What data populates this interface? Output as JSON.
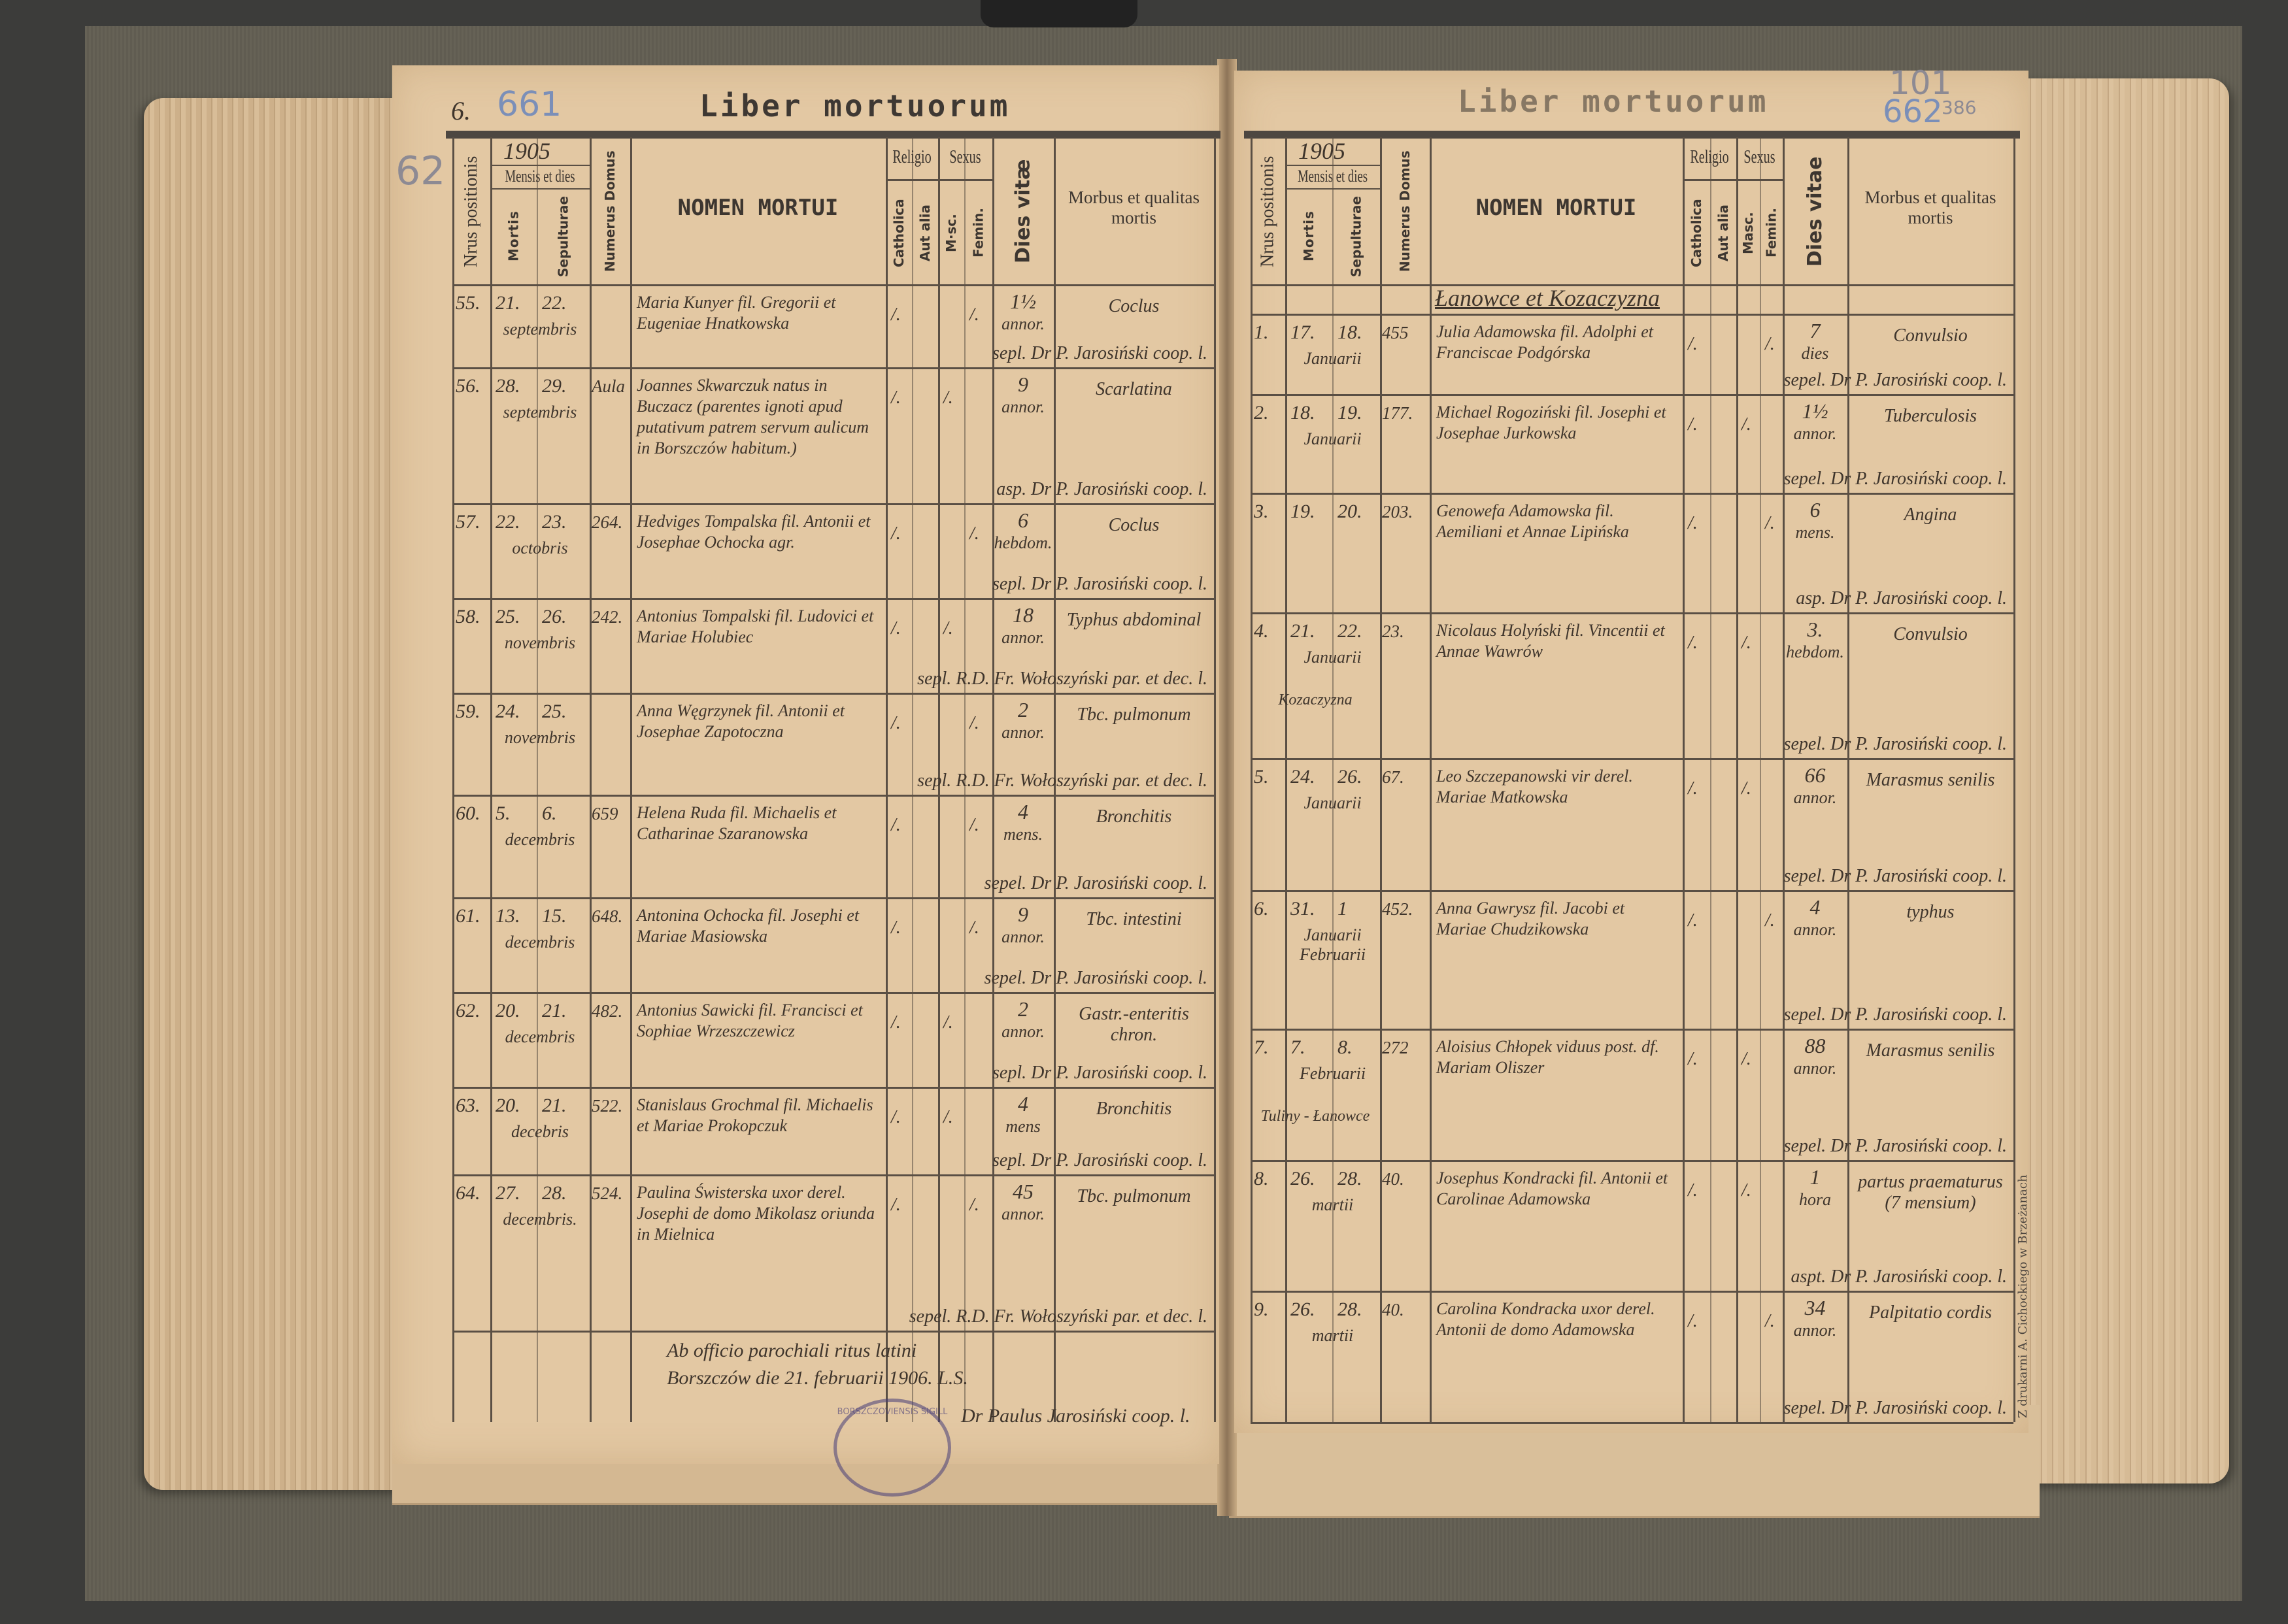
{
  "pencil_marks": {
    "left_margin": "62",
    "left_page_folio": "6.",
    "left_page_number": "661",
    "right_page_number": "662",
    "right_page_small": "386",
    "right_top": "101"
  },
  "left_page": {
    "title": "Liber mortuorum",
    "header": {
      "nrus": "Nrus positionis",
      "year": "1905",
      "mensis": "Mensis et dies",
      "mortis": "Mortis",
      "sepulturae": "Sepulturae",
      "domus": "Numerus Domus",
      "nomen": "NOMEN MORTUI",
      "religio": "Religio",
      "catholica": "Catholica",
      "aut_alia": "Aut alia",
      "sexus": "Sexus",
      "masc": "M·sc.",
      "femin": "Femin.",
      "dies_vitae": "Dies vitæ",
      "morbus": "Morbus et qualitas mortis"
    },
    "entries": [
      {
        "nr": "55.",
        "mortis": "21.",
        "sepulturae": "22.",
        "month": "septembris",
        "domus": "",
        "name": "Maria Kunyer fil. Gregorii et Eugeniae Hnatkowska",
        "catholica": "/.",
        "masc": "",
        "femin": "/.",
        "age": "1½",
        "age_unit": "annor.",
        "morbus": "Coclus",
        "sepultus": "sepl. Dr P. Jarosiński coop. l."
      },
      {
        "nr": "56.",
        "mortis": "28.",
        "sepulturae": "29.",
        "month": "septembris",
        "domus": "Aula",
        "name": "Joannes Skwarczuk natus in Buczacz (parentes ignoti apud putativum patrem servum aulicum in Borszczów habitum.)",
        "catholica": "/.",
        "masc": "/.",
        "femin": "",
        "age": "9",
        "age_unit": "annor.",
        "morbus": "Scarlatina",
        "sepultus": "asp. Dr P. Jarosiński coop. l."
      },
      {
        "nr": "57.",
        "mortis": "22.",
        "sepulturae": "23.",
        "month": "octobris",
        "domus": "264.",
        "name": "Hedviges Tompalska fil. Antonii et Josephae Ochocka agr.",
        "catholica": "/.",
        "masc": "",
        "femin": "/.",
        "age": "6",
        "age_unit": "hebdom.",
        "morbus": "Coclus",
        "sepultus": "sepl. Dr P. Jarosiński coop. l."
      },
      {
        "nr": "58.",
        "mortis": "25.",
        "sepulturae": "26.",
        "month": "novembris",
        "domus": "242.",
        "name": "Antonius Tompalski fil. Ludovici et Mariae Holubiec",
        "catholica": "/.",
        "masc": "/.",
        "femin": "",
        "age": "18",
        "age_unit": "annor.",
        "morbus": "Typhus abdominal",
        "sepultus": "sepl. R.D. Fr. Wołoszyński par. et dec. l."
      },
      {
        "nr": "59.",
        "mortis": "24.",
        "sepulturae": "25.",
        "month": "novembris",
        "domus": "",
        "name": "Anna Węgrzynek fil. Antonii et Josephae Zapotoczna",
        "catholica": "/.",
        "masc": "",
        "femin": "/.",
        "age": "2",
        "age_unit": "annor.",
        "morbus": "Tbc. pulmonum",
        "sepultus": "sepl. R.D. Fr. Wołoszyński par. et dec. l."
      },
      {
        "nr": "60.",
        "mortis": "5.",
        "sepulturae": "6.",
        "month": "decembris",
        "domus": "659",
        "name": "Helena Ruda fil. Michaelis et Catharinae Szaranowska",
        "catholica": "/.",
        "masc": "",
        "femin": "/.",
        "age": "4",
        "age_unit": "mens.",
        "morbus": "Bronchitis",
        "sepultus": "sepel. Dr P. Jarosiński coop. l."
      },
      {
        "nr": "61.",
        "mortis": "13.",
        "sepulturae": "15.",
        "month": "decembris",
        "domus": "648.",
        "name": "Antonina Ochocka fil. Josephi et Mariae Masiowska",
        "catholica": "/.",
        "masc": "",
        "femin": "/.",
        "age": "9",
        "age_unit": "annor.",
        "morbus": "Tbc. intestini",
        "sepultus": "sepel. Dr P. Jarosiński coop. l."
      },
      {
        "nr": "62.",
        "mortis": "20.",
        "sepulturae": "21.",
        "month": "decembris",
        "domus": "482.",
        "name": "Antonius Sawicki fil. Francisci et Sophiae Wrzeszczewicz",
        "catholica": "/.",
        "masc": "/.",
        "femin": "",
        "age": "2",
        "age_unit": "annor.",
        "morbus": "Gastr.-enteritis chron.",
        "sepultus": "sepl. Dr P. Jarosiński coop. l."
      },
      {
        "nr": "63.",
        "mortis": "20.",
        "sepulturae": "21.",
        "month": "decebris",
        "domus": "522.",
        "name": "Stanislaus Grochmal fil. Michaelis et Mariae Prokopczuk",
        "catholica": "/.",
        "masc": "/.",
        "femin": "",
        "age": "4",
        "age_unit": "mens",
        "morbus": "Bronchitis",
        "sepultus": "sepl. Dr P. Jarosiński coop. l."
      },
      {
        "nr": "64.",
        "mortis": "27.",
        "sepulturae": "28.",
        "month": "decembris.",
        "domus": "524.",
        "name": "Paulina Świsterska uxor derel. Josephi de domo Mikolasz oriunda in Mielnica",
        "catholica": "/.",
        "masc": "",
        "femin": "/.",
        "age": "45",
        "age_unit": "annor.",
        "morbus": "Tbc. pulmonum",
        "sepultus": "sepel. R.D. Fr. Wołoszyński par. et dec. l."
      }
    ],
    "closing": {
      "line1": "Ab officio parochiali ritus latini",
      "line2": "Borszczów die 21. februarii 1906. L.S.",
      "signature": "Dr Paulus Jarosiński coop. l."
    },
    "stamp_text": "BORSZCZOVIENSIS SIGILL"
  },
  "right_page": {
    "title": "Liber mortuorum",
    "header": {
      "nrus": "Nrus positionis",
      "year": "1905",
      "mensis": "Mensis et dies",
      "mortis": "Mortis",
      "sepulturae": "Sepulturae",
      "domus": "Numerus Domus",
      "nomen": "NOMEN MORTUI",
      "religio": "Religio",
      "catholica": "Catholica",
      "aut_alia": "Aut alia",
      "sexus": "Sexus",
      "masc": "Masc.",
      "femin": "Femin.",
      "dies_vitae": "Dies vitae",
      "morbus": "Morbus et qualitas mortis"
    },
    "section_title": "Łanowce et Kozaczyzna",
    "entries": [
      {
        "nr": "1.",
        "mortis": "17.",
        "sepulturae": "18.",
        "month": "Januarii",
        "place": "",
        "domus": "455",
        "name": "Julia Adamowska fil. Adolphi et Franciscae Podgórska",
        "catholica": "/.",
        "masc": "",
        "femin": "/.",
        "age": "7",
        "age_unit": "dies",
        "morbus": "Convulsio",
        "sepultus": "sepel. Dr P. Jarosiński coop. l."
      },
      {
        "nr": "2.",
        "mortis": "18.",
        "sepulturae": "19.",
        "month": "Januarii",
        "place": "",
        "domus": "177.",
        "name": "Michael Rogoziński fil. Josephi et Josephae Jurkowska",
        "catholica": "/.",
        "masc": "/.",
        "femin": "",
        "age": "1½",
        "age_unit": "annor.",
        "morbus": "Tuberculosis",
        "sepultus": "sepel. Dr P. Jarosiński coop. l."
      },
      {
        "nr": "3.",
        "mortis": "19.",
        "sepulturae": "20.",
        "month": "",
        "place": "",
        "domus": "203.",
        "name": "Genowefa Adamowska fil. Aemiliani et Annae Lipińska",
        "catholica": "/.",
        "masc": "",
        "femin": "/.",
        "age": "6",
        "age_unit": "mens.",
        "morbus": "Angina",
        "sepultus": "asp. Dr P. Jarosiński coop. l."
      },
      {
        "nr": "4.",
        "mortis": "21.",
        "sepulturae": "22.",
        "month": "Januarii",
        "place": "Kozaczyzna",
        "domus": "23.",
        "name": "Nicolaus Holyński fil. Vincentii et Annae Wawrów",
        "catholica": "/.",
        "masc": "/.",
        "femin": "",
        "age": "3.",
        "age_unit": "hebdom.",
        "morbus": "Convulsio",
        "sepultus": "sepel. Dr P. Jarosiński coop. l."
      },
      {
        "nr": "5.",
        "mortis": "24.",
        "sepulturae": "26.",
        "month": "Januarii",
        "place": "",
        "domus": "67.",
        "name": "Leo Szczepanowski vir derel. Mariae Matkowska",
        "catholica": "/.",
        "masc": "/.",
        "femin": "",
        "age": "66",
        "age_unit": "annor.",
        "morbus": "Marasmus senilis",
        "sepultus": "sepel. Dr P. Jarosiński coop. l."
      },
      {
        "nr": "6.",
        "mortis": "31.",
        "sepulturae": "1",
        "month": "Januarii Februarii",
        "place": "",
        "domus": "452.",
        "name": "Anna Gawrysz fil. Jacobi et Mariae Chudzikowska",
        "catholica": "/.",
        "masc": "",
        "femin": "/.",
        "age": "4",
        "age_unit": "annor.",
        "morbus": "typhus",
        "sepultus": "sepel. Dr P. Jarosiński coop. l."
      },
      {
        "nr": "7.",
        "mortis": "7.",
        "sepulturae": "8.",
        "month": "Februarii",
        "place": "Tuliny - Łanowce",
        "domus": "272",
        "name": "Aloisius Chłopek viduus post. df. Mariam Oliszer",
        "catholica": "/.",
        "masc": "/.",
        "femin": "",
        "age": "88",
        "age_unit": "annor.",
        "morbus": "Marasmus senilis",
        "sepultus": "sepel. Dr P. Jarosiński coop. l."
      },
      {
        "nr": "8.",
        "mortis": "26.",
        "sepulturae": "28.",
        "month": "martii",
        "place": "",
        "domus": "40.",
        "name": "Josephus Kondracki fil. Antonii et Carolinae Adamowska",
        "catholica": "/.",
        "masc": "/.",
        "femin": "",
        "age": "1",
        "age_unit": "hora",
        "morbus": "partus praematurus (7 mensium)",
        "sepultus": "aspt. Dr P. Jarosiński coop. l."
      },
      {
        "nr": "9.",
        "mortis": "26.",
        "sepulturae": "28.",
        "month": "martii",
        "place": "",
        "domus": "40.",
        "name": "Carolina Kondracka uxor derel. Antonii de domo Adamowska",
        "catholica": "/.",
        "masc": "",
        "femin": "/.",
        "age": "34",
        "age_unit": "annor.",
        "morbus": "Palpitatio cordis",
        "sepultus": "sepel. Dr P. Jarosiński coop. l."
      }
    ],
    "imprint": "Z drukarni A. Cichockiego w Brzeżanach"
  },
  "colors": {
    "paper": "#e3c8a3",
    "ink": "#3f352c",
    "rules": "#5a4f44",
    "cloth": "#a09d93",
    "stamp": "#46407a"
  }
}
